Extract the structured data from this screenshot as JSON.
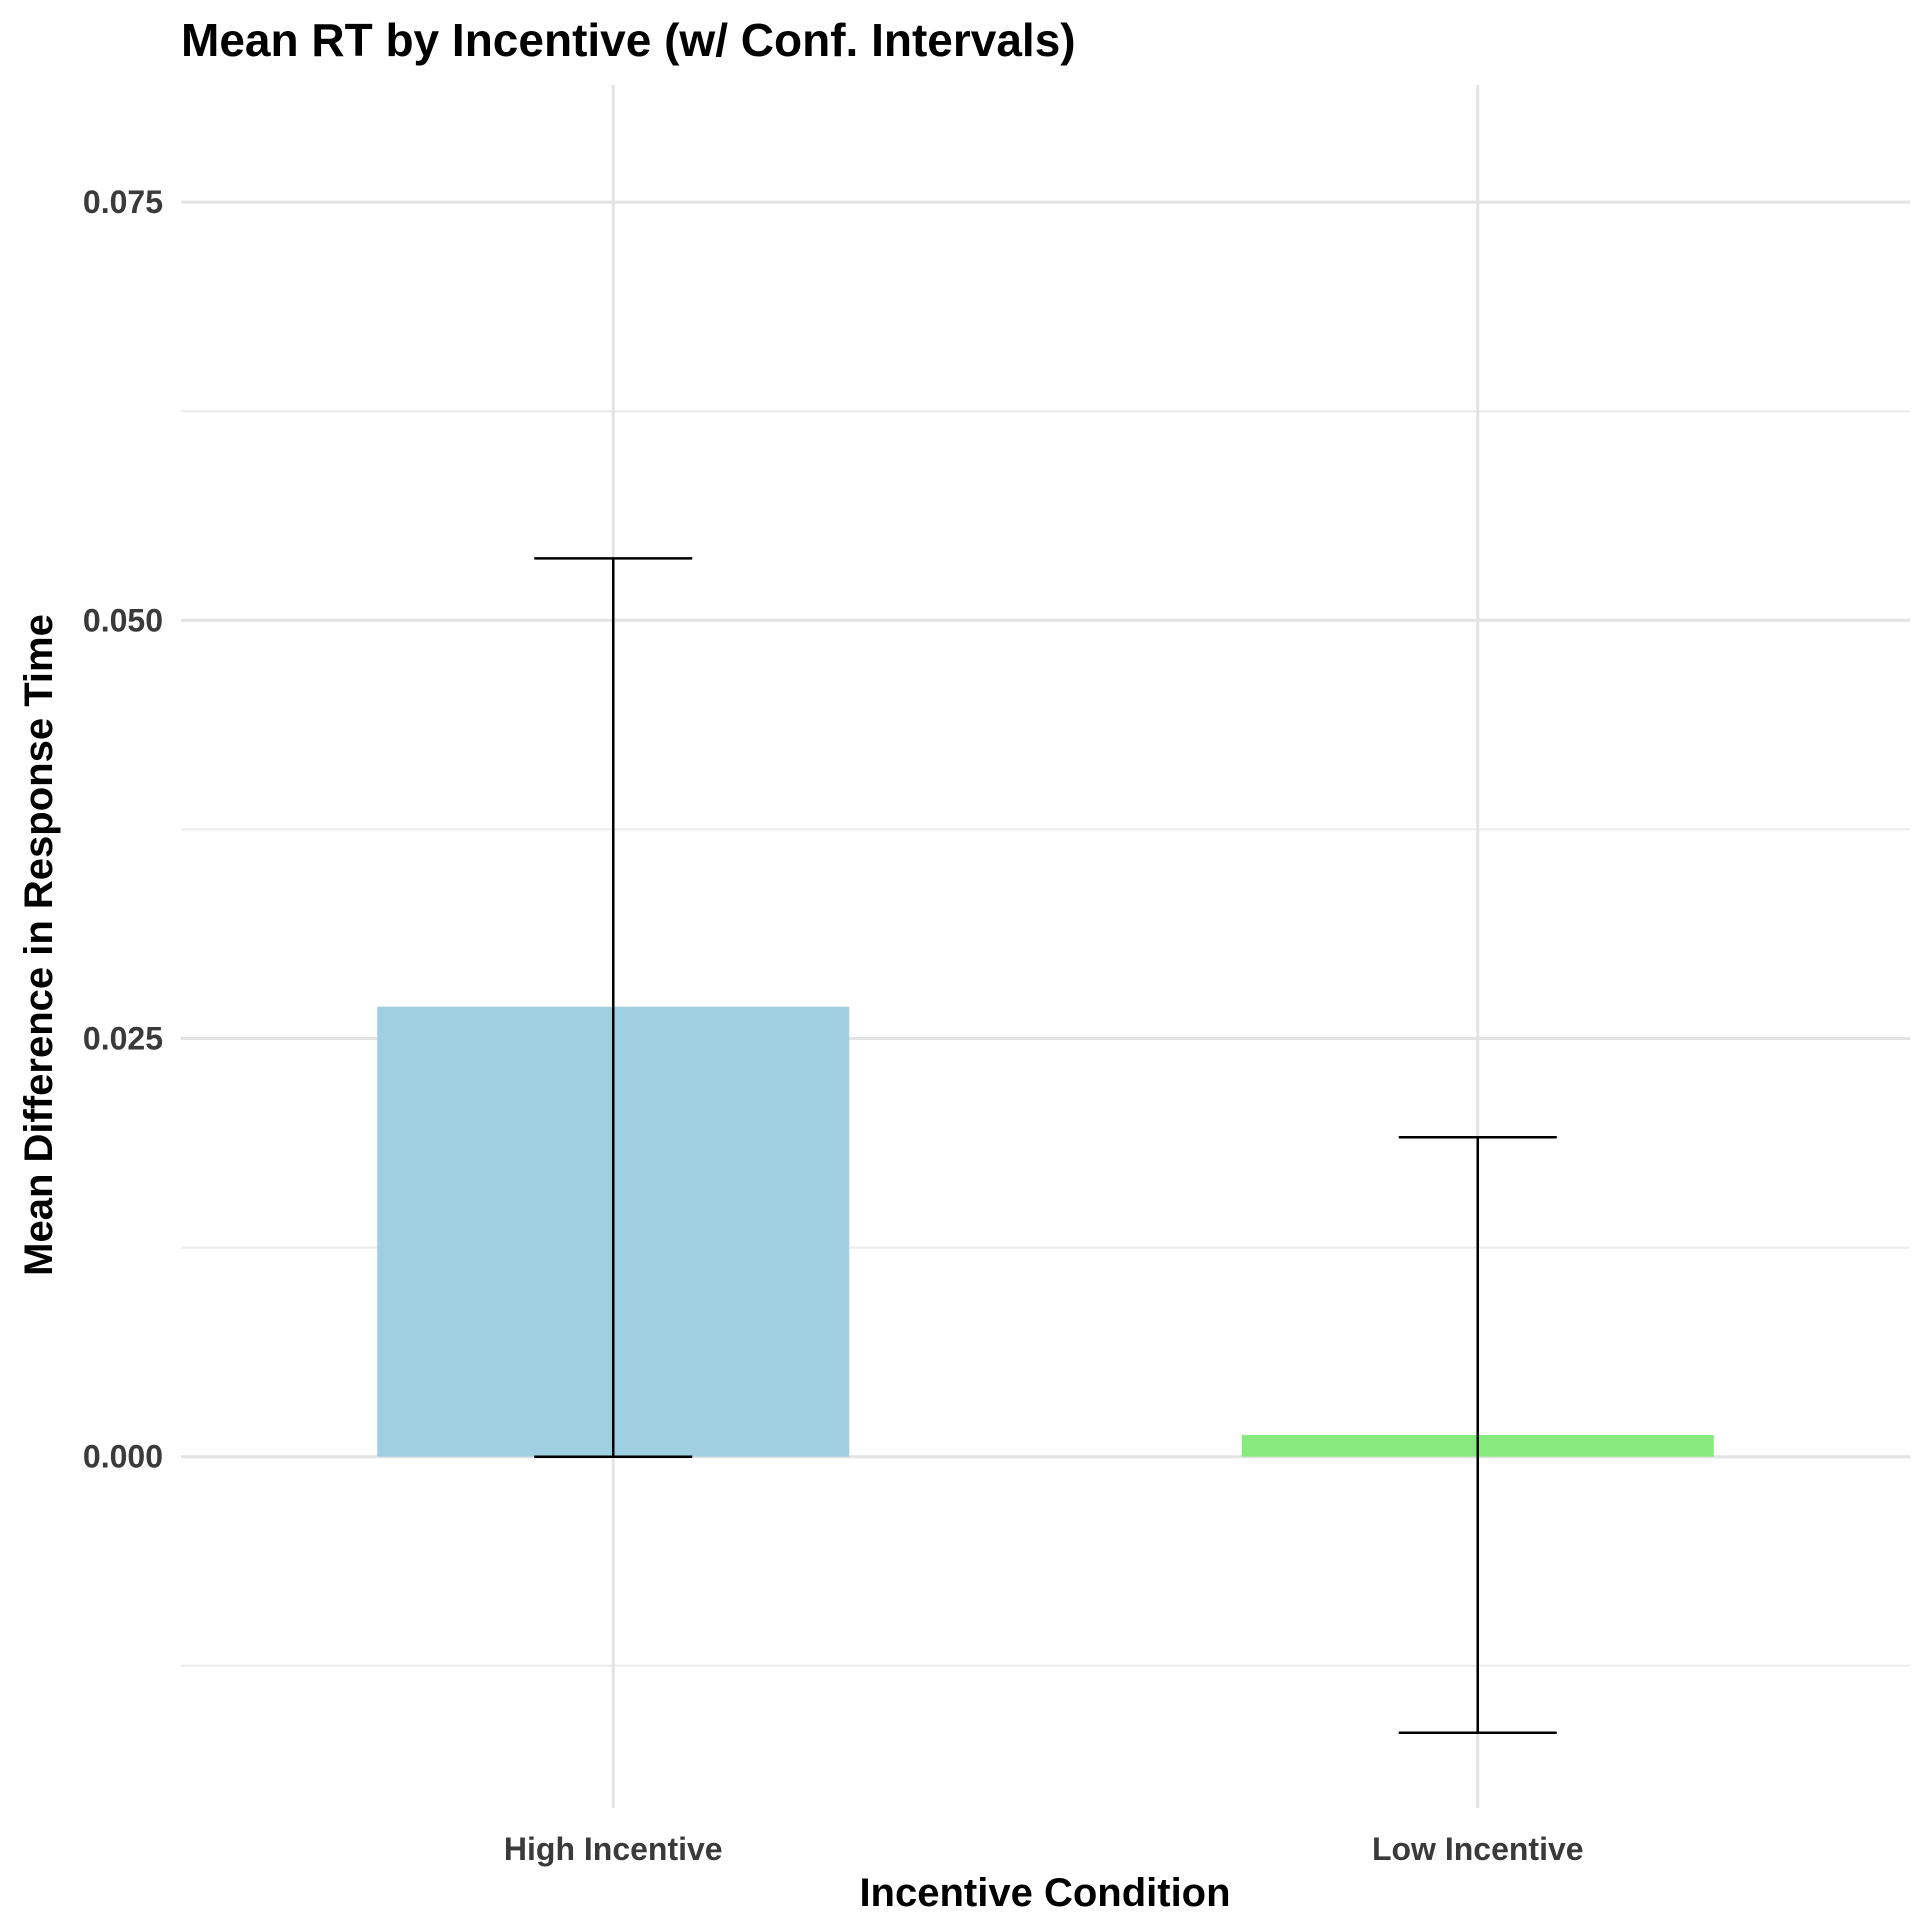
{
  "chart_data": {
    "type": "bar",
    "title": "Mean RT by Incentive (w/ Conf. Intervals)",
    "xlabel": "Incentive Condition",
    "ylabel": "Mean Difference in Response Time",
    "categories": [
      "High Incentive",
      "Low Incentive"
    ],
    "values": [
      0.0269,
      0.0013
    ],
    "ci_lower": [
      0.0,
      -0.0165
    ],
    "ci_upper": [
      0.0537,
      0.0191
    ],
    "colors": [
      "#9fcfe0",
      "#86ea7e"
    ],
    "ylim": [
      -0.021,
      0.082
    ],
    "yticks": [
      0.0,
      0.025,
      0.05,
      0.075
    ],
    "ytick_labels": [
      "0.000",
      "0.025",
      "0.050",
      "0.075"
    ],
    "grid": true,
    "legend": "none"
  }
}
